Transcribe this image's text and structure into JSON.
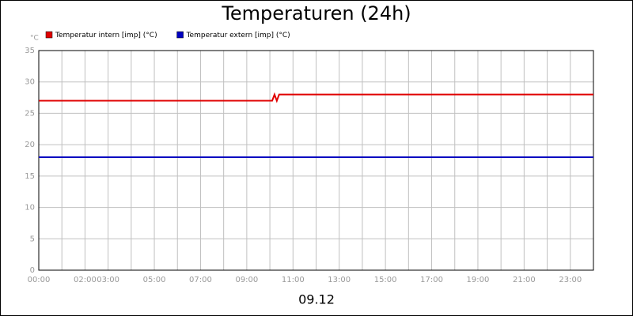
{
  "chart_data": {
    "type": "line",
    "title": "Temperaturen (24h)",
    "x_label": "09.12",
    "y_label": "°C",
    "x": [
      0,
      10.1,
      10.2,
      10.3,
      10.4,
      24
    ],
    "series": [
      {
        "name": "Temperatur intern [imp] (°C)",
        "color": "#e00000",
        "values": [
          27,
          27,
          28,
          27,
          28,
          28
        ]
      },
      {
        "name": "Temperatur extern [imp] (°C)",
        "color": "#0000c0",
        "values": [
          18,
          18,
          18,
          18,
          18,
          18
        ]
      }
    ],
    "xlim": [
      0,
      24
    ],
    "xticks": [
      {
        "value": 0,
        "label": "00:00"
      },
      {
        "value": 1,
        "label": null
      },
      {
        "value": 2,
        "label": "02:00"
      },
      {
        "value": 3,
        "label": "03:00"
      },
      {
        "value": 4,
        "label": null
      },
      {
        "value": 5,
        "label": "05:00"
      },
      {
        "value": 6,
        "label": null
      },
      {
        "value": 7,
        "label": "07:00"
      },
      {
        "value": 8,
        "label": null
      },
      {
        "value": 9,
        "label": "09:00"
      },
      {
        "value": 10,
        "label": null
      },
      {
        "value": 11,
        "label": "11:00"
      },
      {
        "value": 12,
        "label": null
      },
      {
        "value": 13,
        "label": "13:00"
      },
      {
        "value": 14,
        "label": null
      },
      {
        "value": 15,
        "label": "15:00"
      },
      {
        "value": 16,
        "label": null
      },
      {
        "value": 17,
        "label": "17:00"
      },
      {
        "value": 18,
        "label": null
      },
      {
        "value": 19,
        "label": "19:00"
      },
      {
        "value": 20,
        "label": null
      },
      {
        "value": 21,
        "label": "21:00"
      },
      {
        "value": 22,
        "label": null
      },
      {
        "value": 23,
        "label": "23:00"
      }
    ],
    "ylim": [
      0,
      35
    ],
    "yticks": [
      0,
      5,
      10,
      15,
      20,
      25,
      30,
      35
    ],
    "grid": true
  }
}
